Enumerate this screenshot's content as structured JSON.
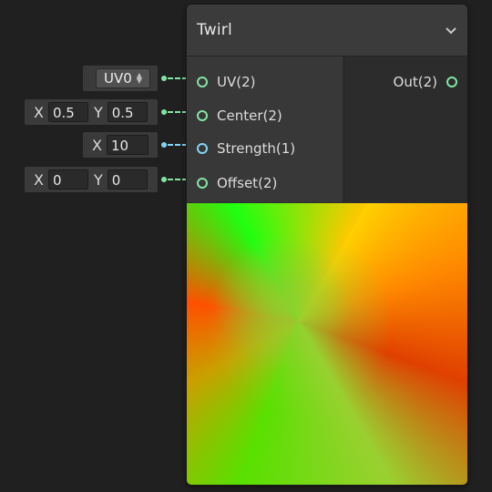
{
  "node": {
    "title": "Twirl",
    "collapse_icon": "chevron-down-icon",
    "inputs": [
      {
        "label": "UV(2)",
        "type_color": "#84e4a4"
      },
      {
        "label": "Center(2)",
        "type_color": "#84e4a4"
      },
      {
        "label": "Strength(1)",
        "type_color": "#84d4f4"
      },
      {
        "label": "Offset(2)",
        "type_color": "#84e4a4"
      }
    ],
    "outputs": [
      {
        "label": "Out(2)",
        "type_color": "#84e4a4"
      }
    ]
  },
  "controls": {
    "uv": {
      "selected": "UV0"
    },
    "center": {
      "x_label": "X",
      "x_value": "0.5",
      "y_label": "Y",
      "y_value": "0.5"
    },
    "strength": {
      "x_label": "X",
      "x_value": "10"
    },
    "offset": {
      "x_label": "X",
      "x_value": "0",
      "y_label": "Y",
      "y_value": "0"
    }
  },
  "colors": {
    "background": "#202020",
    "vector2_port": "#84e4a4",
    "vector1_port": "#84d4f4"
  }
}
